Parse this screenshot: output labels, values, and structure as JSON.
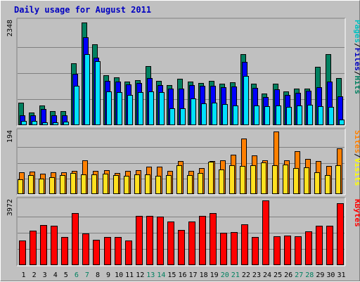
{
  "chart_data": {
    "type": "bar",
    "title": "Daily usage for August 2011",
    "categories": [
      "1",
      "2",
      "3",
      "4",
      "5",
      "6",
      "7",
      "8",
      "9",
      "10",
      "11",
      "12",
      "13",
      "14",
      "15",
      "16",
      "17",
      "18",
      "19",
      "20",
      "21",
      "22",
      "23",
      "24",
      "25",
      "26",
      "27",
      "28",
      "29",
      "30",
      "31"
    ],
    "weekend_days": [
      "6",
      "7",
      "13",
      "14",
      "20",
      "21",
      "27",
      "28"
    ],
    "panels": [
      {
        "name": "hits",
        "ymax_label": "2348",
        "ylim": [
          0,
          2348
        ],
        "right_labels": [
          {
            "text": "Pages",
            "color": "#00c0c0"
          },
          {
            "text": "/",
            "color": "#000000"
          },
          {
            "text": "Files",
            "color": "#0000c0"
          },
          {
            "text": "/",
            "color": "#000000"
          },
          {
            "text": "Hits",
            "color": "#008060"
          }
        ],
        "series": [
          {
            "name": "Hits",
            "color": "#008060",
            "values": [
              510,
              290,
              450,
              310,
              320,
              1390,
              2310,
              1820,
              1130,
              1080,
              990,
              1020,
              1330,
              1000,
              910,
              1040,
              990,
              950,
              1000,
              940,
              960,
              1600,
              930,
              720,
              930,
              760,
              830,
              830,
              1320,
              1600,
              1070
            ]
          },
          {
            "name": "Files",
            "color": "#0000ff",
            "values": [
              230,
              230,
              370,
              230,
              220,
              1160,
              1990,
              1530,
              1000,
              990,
              920,
              950,
              1070,
              910,
              820,
              830,
              900,
              890,
              890,
              860,
              870,
              1420,
              840,
              630,
              810,
              690,
              730,
              770,
              860,
              980,
              650
            ]
          },
          {
            "name": "Pages",
            "color": "#00e0ff",
            "values": [
              100,
              100,
              60,
              70,
              80,
              890,
              1610,
              1450,
              760,
              740,
              680,
              740,
              760,
              750,
              380,
              380,
              610,
              490,
              500,
              470,
              450,
              1110,
              450,
              430,
              440,
              420,
              450,
              460,
              430,
              410,
              120
            ]
          }
        ]
      },
      {
        "name": "visits",
        "ymax_label": "194",
        "ylim": [
          0,
          194
        ],
        "right_labels": [
          {
            "text": "Sites",
            "color": "#ff8000"
          },
          {
            "text": "/",
            "color": "#000000"
          },
          {
            "text": "Visits",
            "color": "#ffff00"
          }
        ],
        "series": [
          {
            "name": "Visits",
            "color": "#ff8000",
            "values": [
              68,
              69,
              64,
              67,
              68,
              72,
              104,
              73,
              75,
              66,
              71,
              74,
              86,
              84,
              71,
              103,
              73,
              80,
              103,
              105,
              122,
              172,
              119,
              104,
              194,
              104,
              132,
              110,
              102,
              88,
              142
            ]
          },
          {
            "name": "Sites",
            "color": "#ffe020",
            "values": [
              46,
              58,
              48,
              52,
              58,
              66,
              60,
              60,
              64,
              58,
              56,
              62,
              61,
              56,
              58,
              89,
              58,
              65,
              100,
              77,
              89,
              88,
              90,
              99,
              90,
              92,
              81,
              83,
              67,
              58,
              90
            ]
          }
        ]
      },
      {
        "name": "kbytes",
        "ymax_label": "3972",
        "ylim": [
          0,
          3972
        ],
        "right_labels": [
          {
            "text": "KBytes",
            "color": "#ff0000"
          }
        ],
        "series": [
          {
            "name": "KBytes",
            "color": "#ff0000",
            "values": [
              1520,
              2130,
              2450,
              2430,
              1720,
              3180,
              1950,
              1540,
              1730,
              1730,
              1500,
              3040,
              3040,
              2990,
              2690,
              2160,
              2680,
              3010,
              3200,
              1970,
              2030,
              2500,
              1730,
              3990,
              1790,
              1830,
              1750,
              2070,
              2410,
              2430,
              3800
            ]
          }
        ]
      }
    ]
  }
}
